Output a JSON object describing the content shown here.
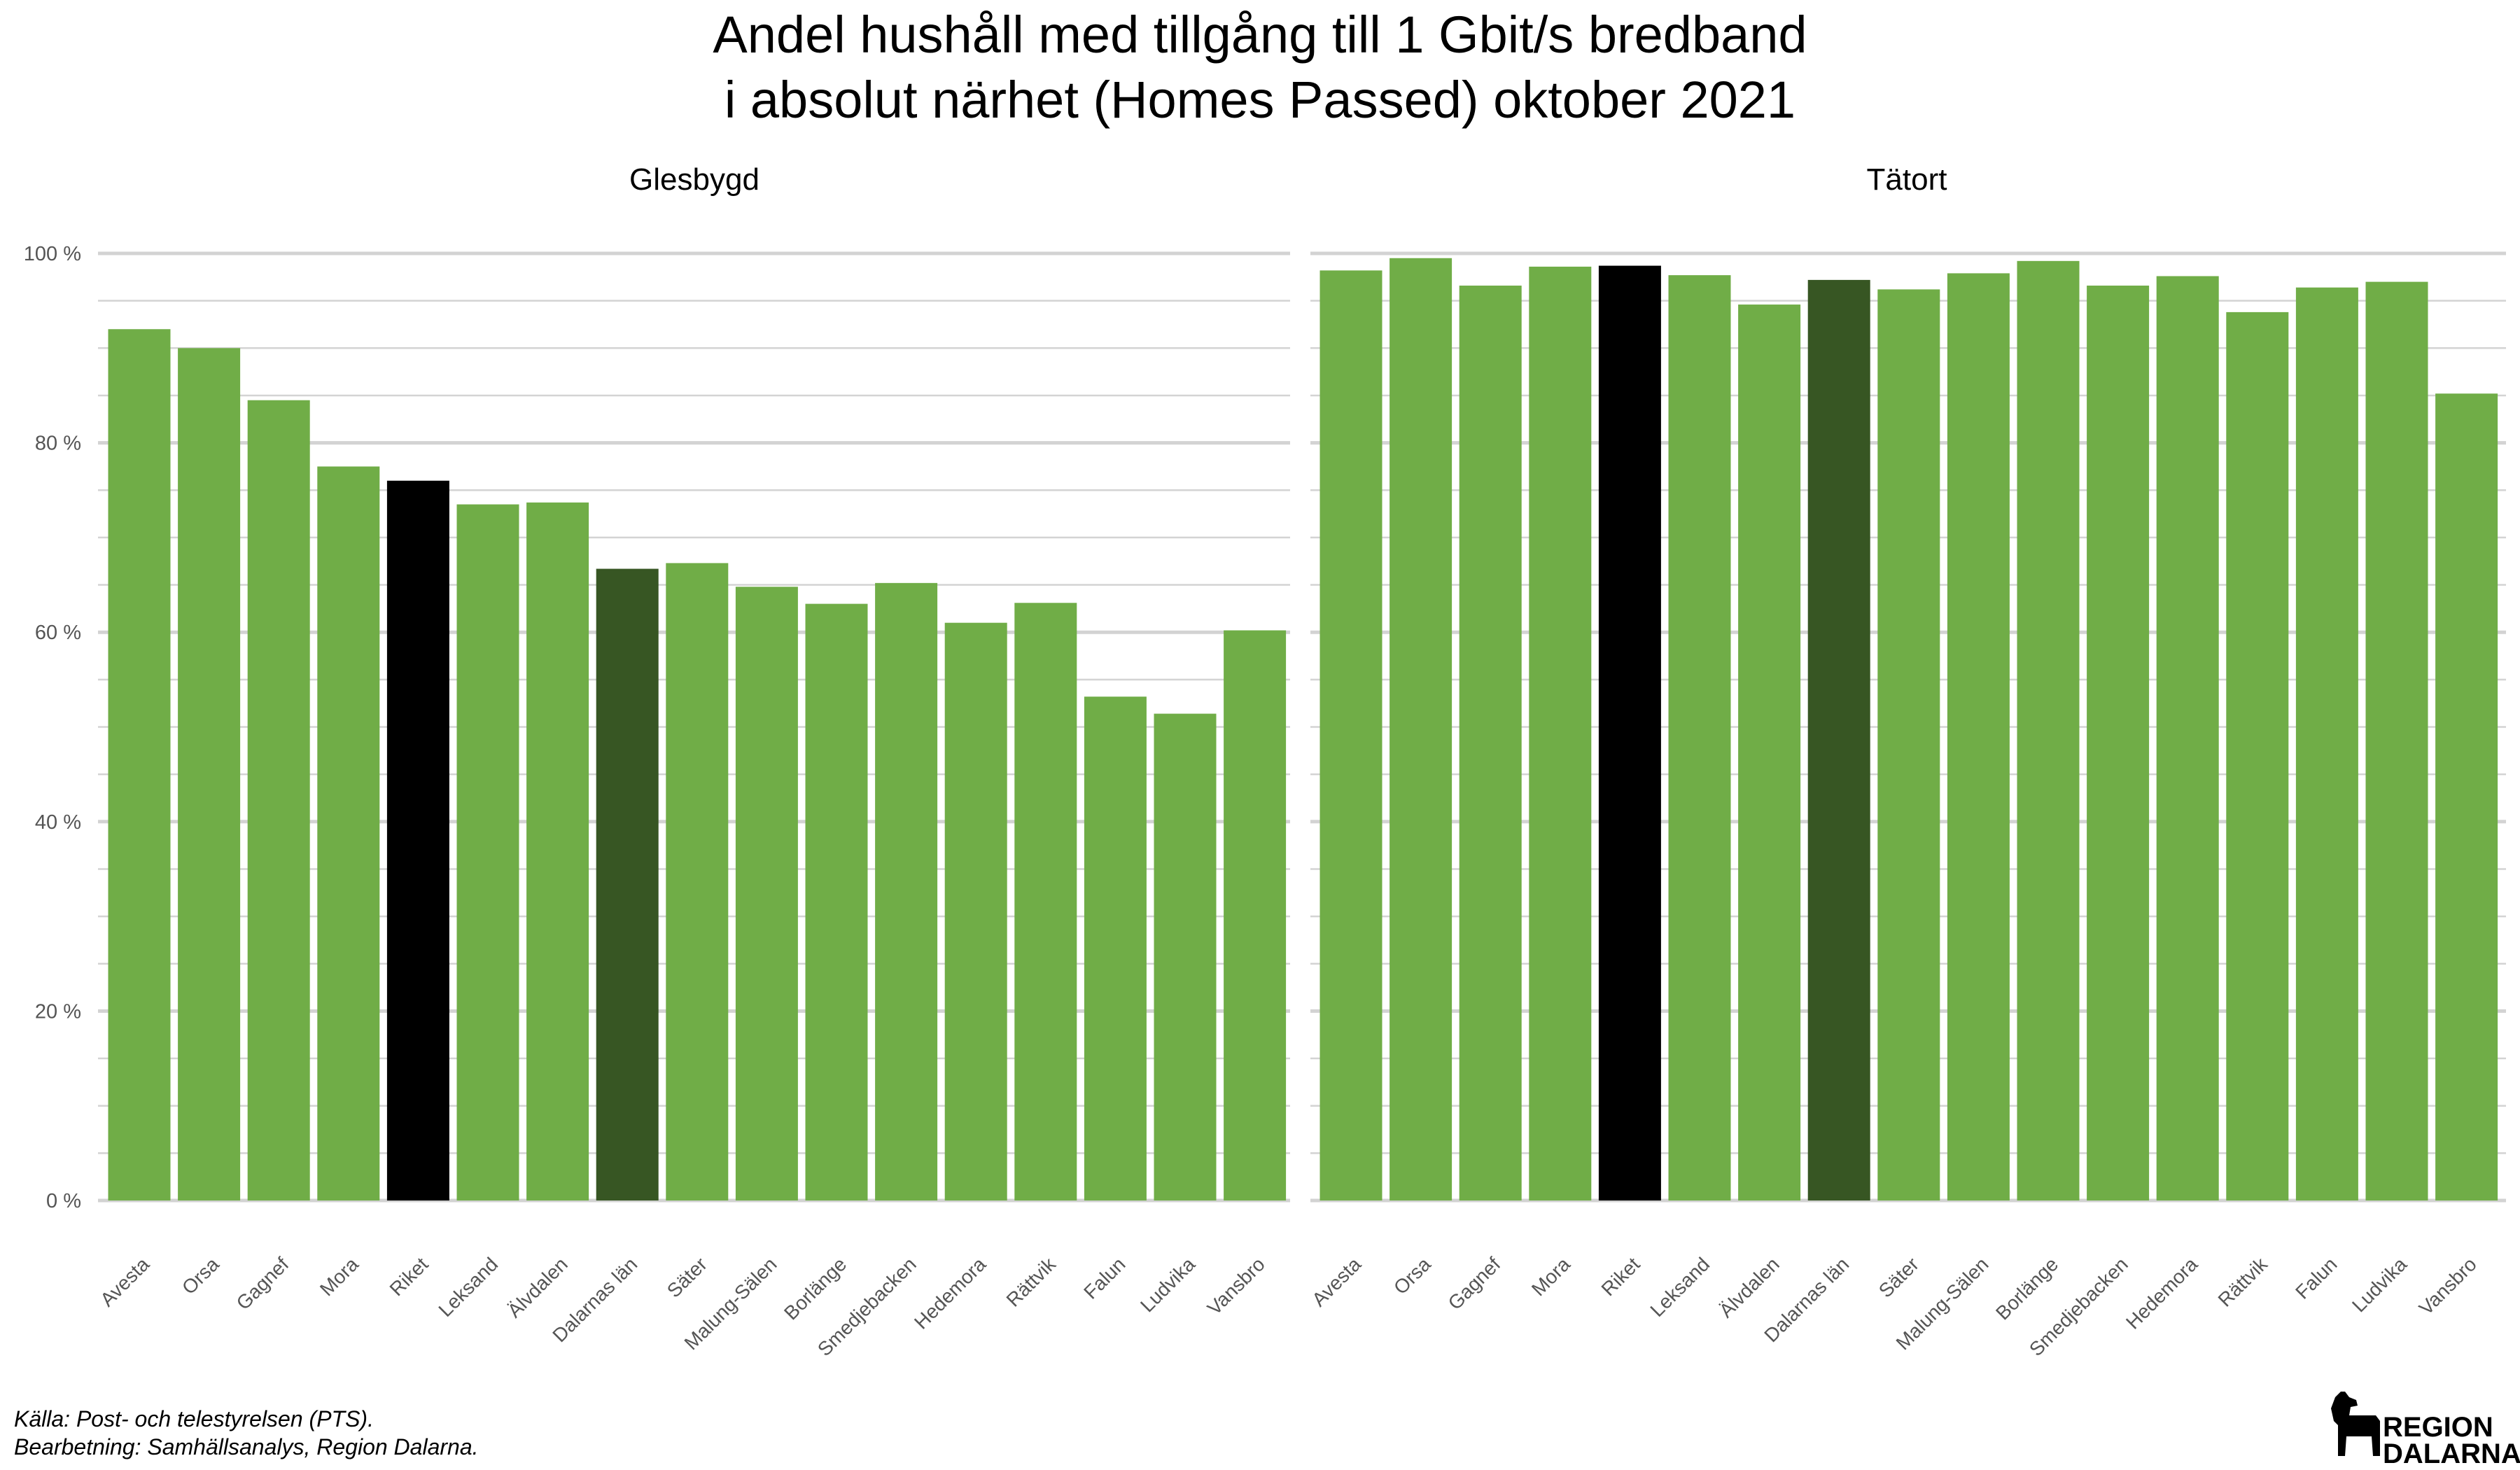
{
  "chart_data": {
    "type": "bar",
    "title_line1": "Andel hushåll med tillgång till 1 Gbit/s bredband",
    "title_line2": "i absolut närhet (Homes Passed) oktober 2021",
    "xlabel": "",
    "ylabel": "",
    "ylim": [
      0,
      100
    ],
    "yticks": [
      0,
      20,
      40,
      60,
      80,
      100
    ],
    "ytick_labels": [
      "0 %",
      "20 %",
      "40 %",
      "60 %",
      "80 %",
      "100 %"
    ],
    "grid": true,
    "categories": [
      "Avesta",
      "Orsa",
      "Gagnef",
      "Mora",
      "Riket",
      "Leksand",
      "Älvdalen",
      "Dalarnas län",
      "Säter",
      "Malung-Sälen",
      "Borlänge",
      "Smedjebacken",
      "Hedemora",
      "Rättvik",
      "Falun",
      "Ludvika",
      "Vansbro"
    ],
    "colors": {
      "default": "#70AD47",
      "Riket": "#000000",
      "Dalarnas län": "#375623"
    },
    "panels": [
      {
        "name": "Glesbygd",
        "values": [
          92,
          90,
          84.5,
          77.5,
          76,
          73.5,
          73.7,
          66.7,
          67.3,
          64.8,
          63,
          65.2,
          61,
          63.1,
          53.2,
          51.4,
          60.2
        ]
      },
      {
        "name": "Tätort",
        "values": [
          98.2,
          99.5,
          96.6,
          98.6,
          98.7,
          97.7,
          94.6,
          97.2,
          96.2,
          97.9,
          99.2,
          96.6,
          97.6,
          93.8,
          96.4,
          97,
          85.2
        ]
      }
    ]
  },
  "caption": {
    "line1": "Källa: Post- och telestyrelsen (PTS).",
    "line2": "Bearbetning: Samhällsanalys, Region Dalarna."
  },
  "logo": {
    "line1": "REGION",
    "line2": "DALARNA"
  }
}
